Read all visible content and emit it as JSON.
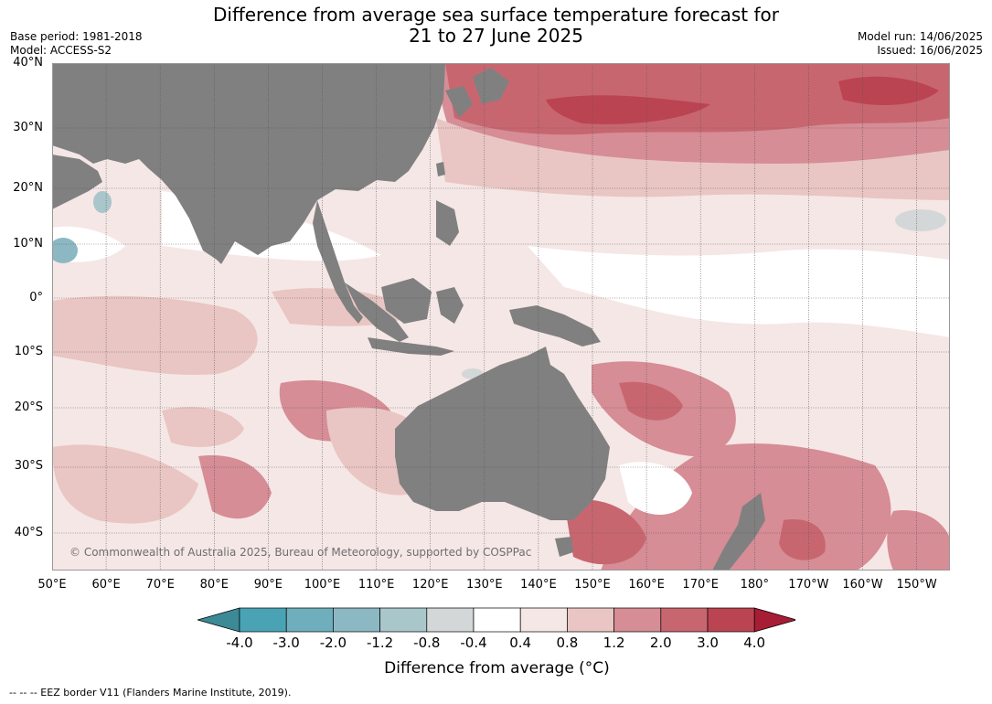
{
  "title": {
    "line1": "Difference from average sea surface temperature forecast for",
    "line2": "21 to 27 June 2025"
  },
  "meta": {
    "base_period": "Base period: 1981-2018",
    "model": "Model: ACCESS-S2",
    "model_run": "Model run: 14/06/2025",
    "issued": "Issued: 16/06/2025"
  },
  "map": {
    "lat_labels": [
      "40°N",
      "30°N",
      "20°N",
      "10°N",
      "0°",
      "10°S",
      "20°S",
      "30°S",
      "40°S"
    ],
    "lon_labels": [
      "50°E",
      "60°E",
      "70°E",
      "80°E",
      "90°E",
      "100°E",
      "110°E",
      "120°E",
      "130°E",
      "140°E",
      "150°E",
      "160°E",
      "170°E",
      "180°",
      "170°W",
      "160°W",
      "150°W"
    ],
    "land_color": "#808080",
    "copyright": "© Commonwealth of Australia 2025, Bureau of Meteorology, supported by COSPPac"
  },
  "colorbar": {
    "ticks": [
      "-4.0",
      "-3.0",
      "-2.0",
      "-1.2",
      "-0.8",
      "-0.4",
      "0.4",
      "0.8",
      "1.2",
      "2.0",
      "3.0",
      "4.0"
    ],
    "colors": [
      "#3b8a95",
      "#4aa3b5",
      "#6fafbd",
      "#8cb8c3",
      "#a9c6cb",
      "#d4d7d8",
      "#ffffff",
      "#f5e7e6",
      "#e9c6c3",
      "#d68d95",
      "#c86670",
      "#bb4452",
      "#a71d34"
    ],
    "label": "Difference from average (°C)"
  },
  "footer": "--  --  -- EEZ border V11 (Flanders Marine Institute, 2019)."
}
